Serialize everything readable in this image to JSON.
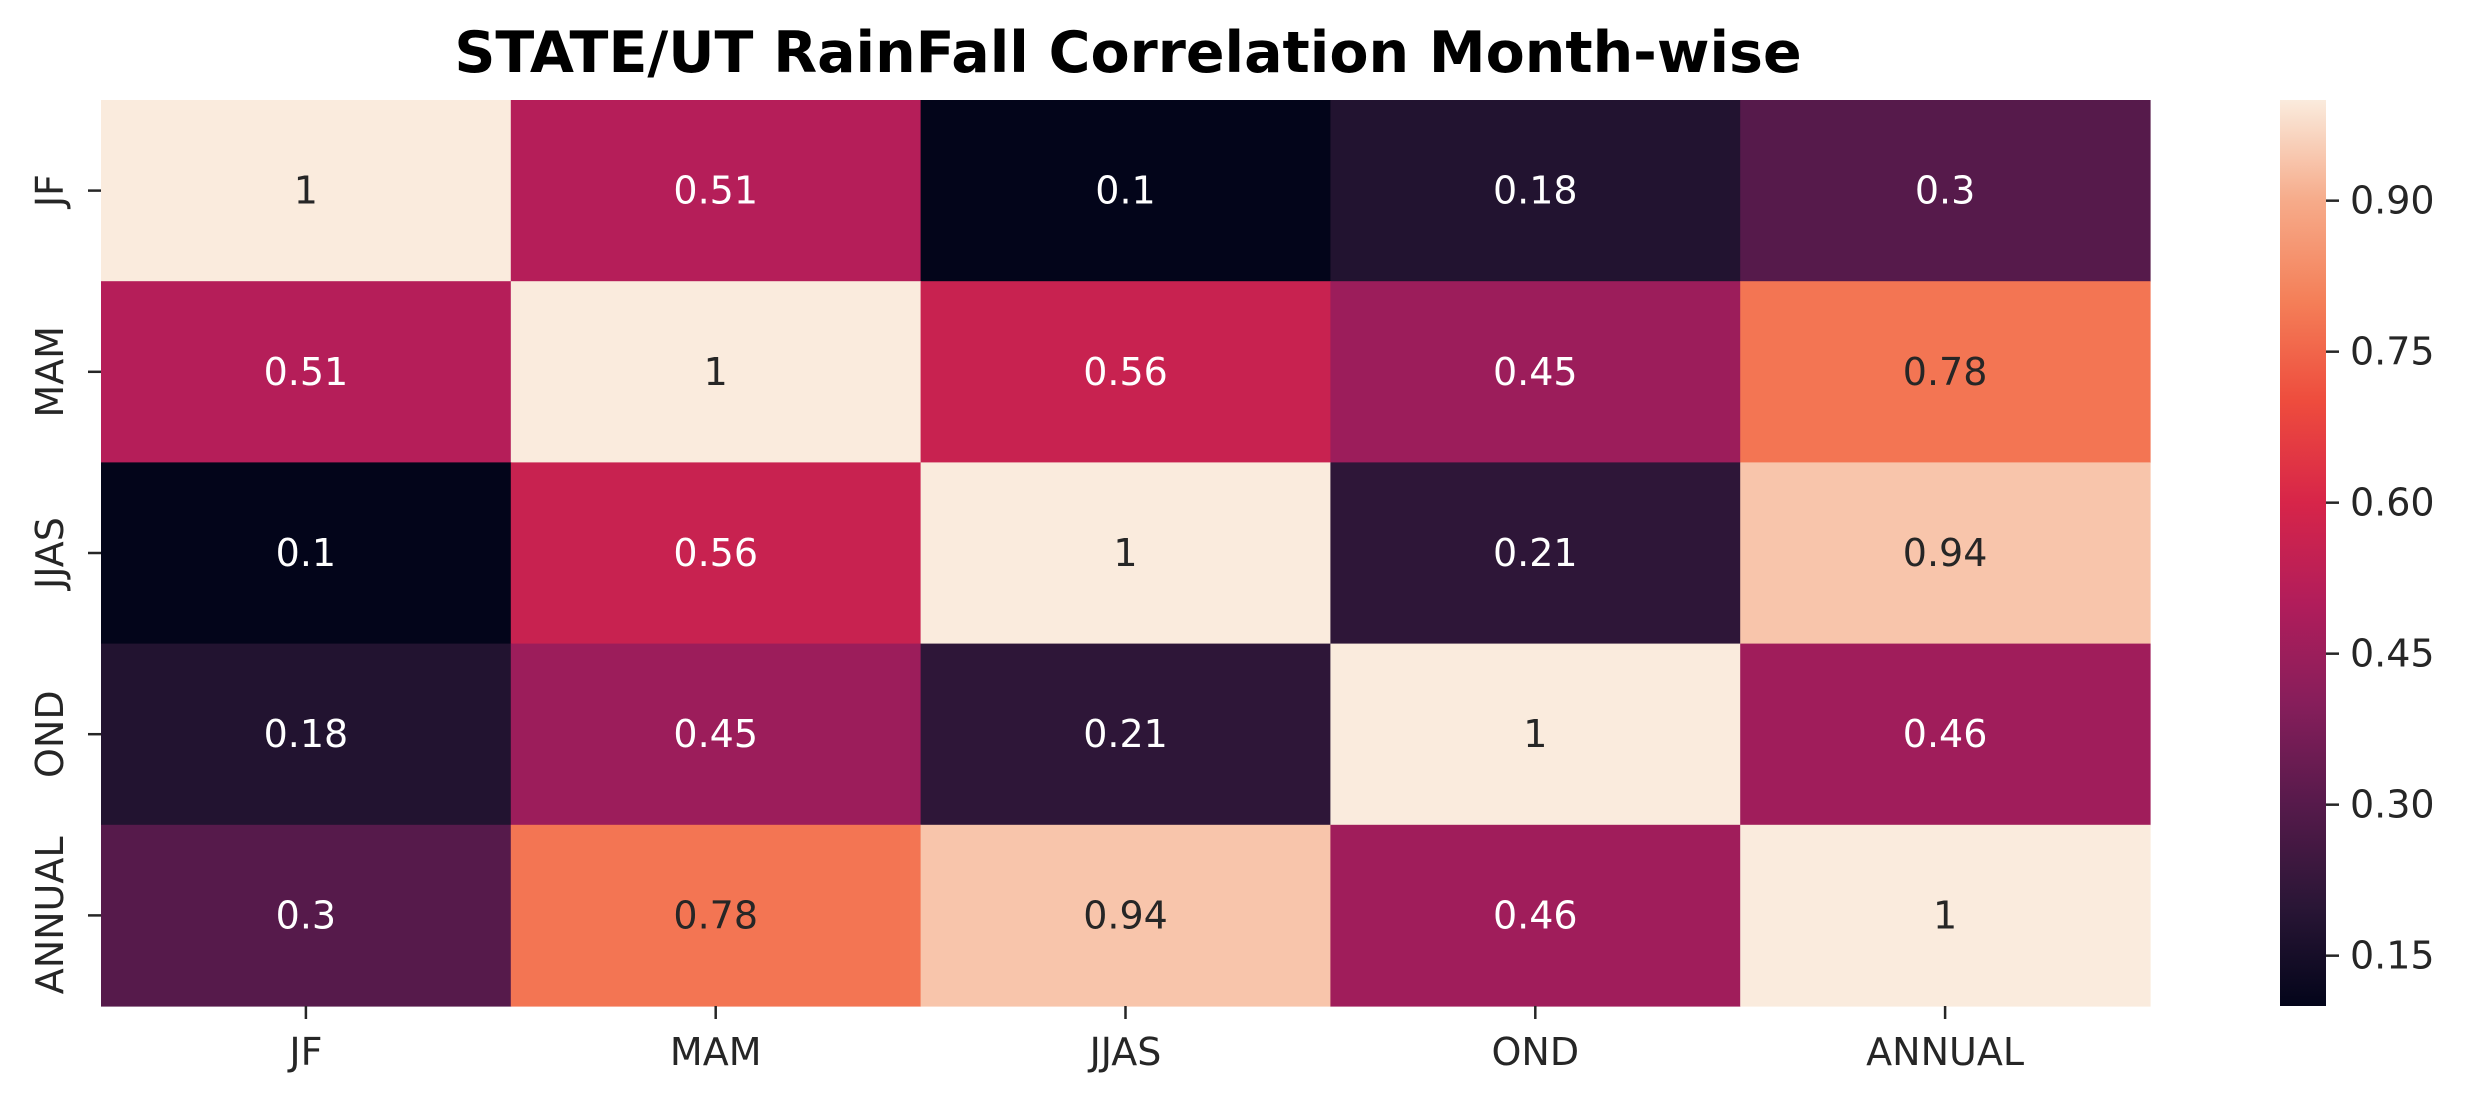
{
  "chart_data": {
    "type": "heatmap",
    "title": "STATE/UT RainFall Correlation Month-wise",
    "xlabel": "",
    "ylabel": "",
    "x_categories": [
      "JF",
      "MAM",
      "JJAS",
      "OND",
      "ANNUAL"
    ],
    "y_categories": [
      "JF",
      "MAM",
      "JJAS",
      "OND",
      "ANNUAL"
    ],
    "values": [
      [
        1,
        0.51,
        0.1,
        0.18,
        0.3
      ],
      [
        0.51,
        1,
        0.56,
        0.45,
        0.78
      ],
      [
        0.1,
        0.56,
        1,
        0.21,
        0.94
      ],
      [
        0.18,
        0.45,
        0.21,
        1,
        0.46
      ],
      [
        0.3,
        0.78,
        0.94,
        0.46,
        1
      ]
    ],
    "annotations": [
      [
        "1",
        "0.51",
        "0.1",
        "0.18",
        "0.3"
      ],
      [
        "0.51",
        "1",
        "0.56",
        "0.45",
        "0.78"
      ],
      [
        "0.1",
        "0.56",
        "1",
        "0.21",
        "0.94"
      ],
      [
        "0.18",
        "0.45",
        "0.21",
        "1",
        "0.46"
      ],
      [
        "0.3",
        "0.78",
        "0.94",
        "0.46",
        "1"
      ]
    ],
    "colormap": "rocket",
    "colorbar": {
      "range": [
        0.1,
        1.0
      ],
      "ticks": [
        0.15,
        0.3,
        0.45,
        0.6,
        0.75,
        0.9
      ],
      "tick_labels": [
        "0.15",
        "0.30",
        "0.45",
        "0.60",
        "0.75",
        "0.90"
      ]
    },
    "grid": false,
    "legend": "colorbar-right"
  }
}
